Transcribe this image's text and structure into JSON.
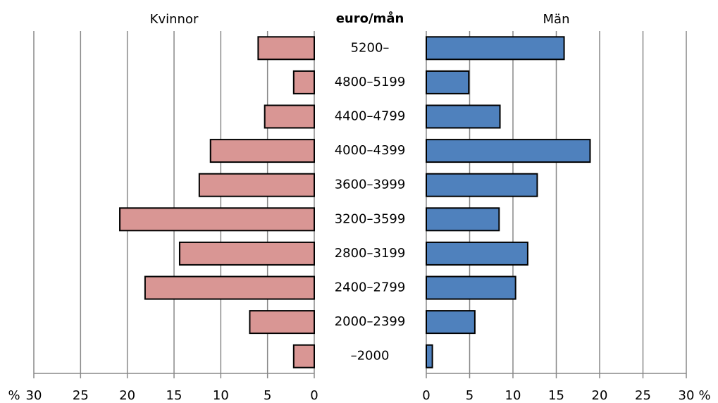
{
  "chart_data": {
    "type": "butterfly",
    "category_label": "euro/mån",
    "x_label": "%",
    "grid": true,
    "categories": [
      "5200–",
      "4800–5199",
      "4400–4799",
      "4000–4399",
      "3600–3999",
      "3200–3599",
      "2800–3199",
      "2400–2799",
      "2000–2399",
      "–2000"
    ],
    "series": [
      {
        "name": "Kvinnor",
        "color": "#d99694",
        "values": [
          6.0,
          2.2,
          5.3,
          11.1,
          12.3,
          20.8,
          14.4,
          18.1,
          6.9,
          2.2
        ],
        "xlim": [
          30,
          0
        ],
        "xticks": [
          30,
          25,
          20,
          15,
          10,
          5,
          0
        ]
      },
      {
        "name": "Män",
        "color": "#4f81bd",
        "values": [
          15.9,
          4.9,
          8.5,
          18.9,
          12.8,
          8.4,
          11.7,
          10.3,
          5.6,
          0.7
        ],
        "xlim": [
          0,
          30
        ],
        "xticks": [
          0,
          5,
          10,
          15,
          20,
          25,
          30
        ]
      }
    ]
  }
}
